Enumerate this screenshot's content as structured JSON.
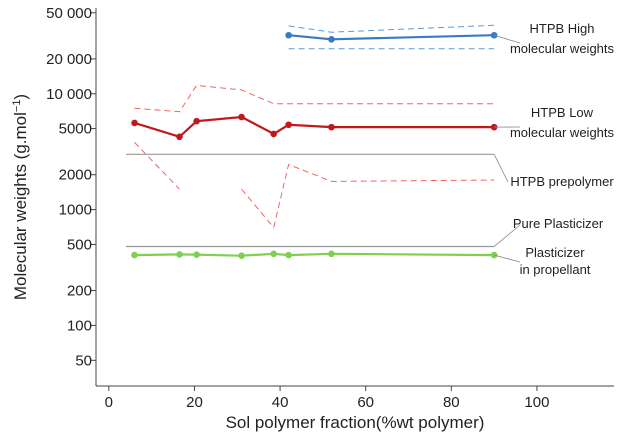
{
  "chart_data": {
    "type": "line",
    "title": "",
    "xlabel": "Sol polymer fraction(%wt polymer)",
    "ylabel": {
      "base": "Molecular weights (g.mol",
      "sup": "−1",
      "end": ")"
    },
    "yscale": "log",
    "xlim": [
      -3,
      118
    ],
    "ylim": [
      30,
      55000
    ],
    "xticks": [
      0,
      20,
      40,
      60,
      80,
      100
    ],
    "xtick_labels": [
      "0",
      "20",
      "40",
      "60",
      "80",
      "100"
    ],
    "yticks": [
      50,
      100,
      200,
      500,
      1000,
      2000,
      5000,
      10000,
      20000,
      50000
    ],
    "ytick_labels": [
      "50",
      "100",
      "200",
      "500",
      "1000",
      "2000",
      "5000",
      "10 000",
      "20 000",
      "50 000"
    ],
    "grid": false,
    "colors": {
      "high": "#3a7ac0",
      "low": "#c0191c",
      "plasticizer": "#7ed04e",
      "reference": "#999999",
      "bounds_low": "#ee6666",
      "bounds_high": "#5b9bd5"
    },
    "series": [
      {
        "name": "HTPB High molecular weights",
        "x": [
          42,
          52,
          90
        ],
        "y": [
          32000,
          29500,
          32000
        ]
      },
      {
        "name": "HTPB Low molecular weights",
        "x": [
          6,
          16.5,
          20.5,
          31,
          38.5,
          42,
          52,
          90
        ],
        "y": [
          5600,
          4250,
          5800,
          6300,
          4500,
          5400,
          5150,
          5150
        ]
      },
      {
        "name": "Plasticizer in propellant",
        "x": [
          6,
          16.5,
          20.5,
          31,
          38.5,
          42,
          52,
          90
        ],
        "y": [
          405,
          410,
          408,
          400,
          415,
          405,
          415,
          405
        ]
      }
    ],
    "reference_lines": [
      {
        "name": "HTPB prepolymer",
        "y": 3000,
        "x": [
          4,
          90
        ]
      },
      {
        "name": "Pure Plasticizer",
        "y": 480,
        "x": [
          4,
          90
        ]
      }
    ],
    "bounds": [
      {
        "series": "HTPB High molecular weights",
        "x": [
          42,
          52,
          90
        ],
        "upper": [
          38500,
          34000,
          39000
        ],
        "lower": [
          24500,
          24500,
          24500
        ]
      },
      {
        "series": "HTPB Low molecular weights",
        "segments": [
          {
            "x": [
              6,
              16.5,
              20.5,
              31,
              38.5,
              90
            ],
            "y": [
              7500,
              7000,
              11800,
              10800,
              8200,
              8200
            ]
          },
          {
            "x": [
              6,
              16.5
            ],
            "y": [
              3800,
              1500
            ]
          },
          {
            "x": [
              31,
              38.5,
              42,
              52,
              90
            ],
            "y": [
              1500,
              700,
              2450,
              1750,
              1800
            ]
          }
        ]
      }
    ],
    "annotations": [
      {
        "text": [
          "HTPB High",
          "molecular weights"
        ],
        "anchor_x": 90,
        "anchor_y": 32000,
        "target_x": 90,
        "target_y": 32000
      },
      {
        "text": [
          "HTPB Low",
          "molecular weights"
        ],
        "anchor_x": 90,
        "anchor_y": 5150,
        "target_x": 90,
        "target_y": 5150
      },
      {
        "text": [
          "HTPB prepolymer"
        ],
        "anchor_x": 90,
        "anchor_y": 3000,
        "target_x": 90,
        "target_y": 3000
      },
      {
        "text": [
          "Pure Plasticizer"
        ],
        "anchor_x": 90,
        "anchor_y": 480,
        "target_x": 90,
        "target_y": 480
      },
      {
        "text": [
          "Plasticizer",
          "in propellant"
        ],
        "anchor_x": 90,
        "anchor_y": 405,
        "target_x": 90,
        "target_y": 405
      }
    ]
  }
}
